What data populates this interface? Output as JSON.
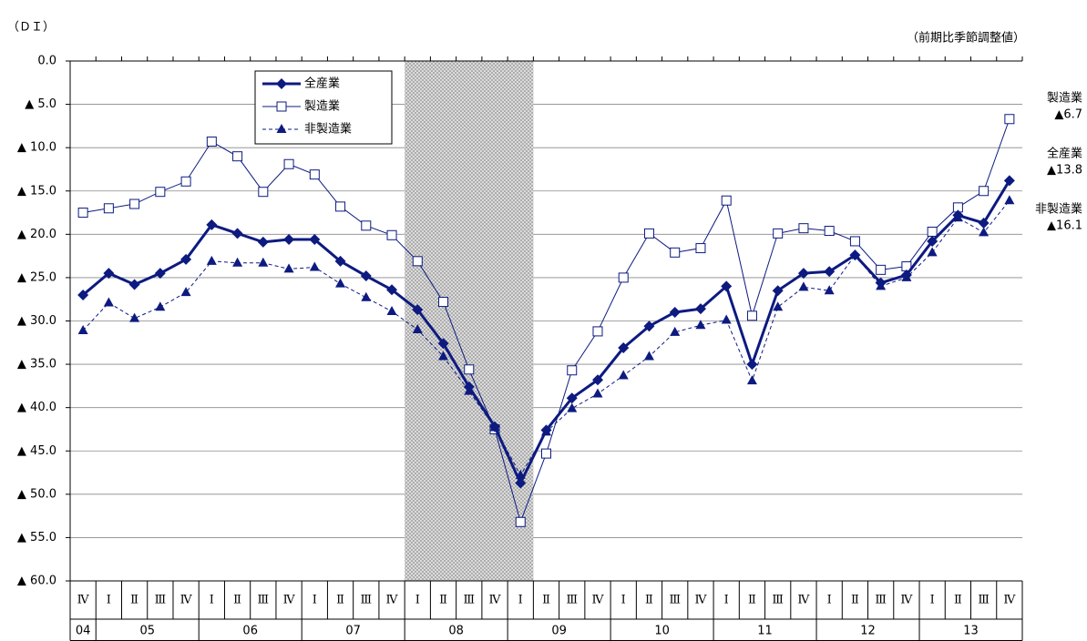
{
  "chart_data": {
    "type": "line",
    "unit_left": "（ＤＩ）",
    "unit_right": "（前期比季節調整値）",
    "categories": [
      "Ⅳ",
      "Ⅰ",
      "Ⅱ",
      "Ⅲ",
      "Ⅳ",
      "Ⅰ",
      "Ⅱ",
      "Ⅲ",
      "Ⅳ",
      "Ⅰ",
      "Ⅱ",
      "Ⅲ",
      "Ⅳ",
      "Ⅰ",
      "Ⅱ",
      "Ⅲ",
      "Ⅳ",
      "Ⅰ",
      "Ⅱ",
      "Ⅲ",
      "Ⅳ",
      "Ⅰ",
      "Ⅱ",
      "Ⅲ",
      "Ⅳ",
      "Ⅰ",
      "Ⅱ",
      "Ⅲ",
      "Ⅳ",
      "Ⅰ",
      "Ⅱ",
      "Ⅲ",
      "Ⅳ",
      "Ⅰ",
      "Ⅱ",
      "Ⅲ",
      "Ⅳ"
    ],
    "x_years": [
      "04",
      "05",
      null,
      null,
      null,
      "06",
      null,
      null,
      null,
      "07",
      null,
      null,
      null,
      "08",
      null,
      null,
      null,
      "09",
      null,
      null,
      null,
      "10",
      null,
      null,
      null,
      "11",
      null,
      null,
      null,
      "12",
      null,
      null,
      null,
      "13",
      null,
      null,
      null
    ],
    "shaded_quarters": [
      13,
      17
    ],
    "ylim": [
      -60,
      0
    ],
    "yticks": [
      {
        "value": 0,
        "label": "0.0"
      },
      {
        "value": -5,
        "label": "▲ 5.0"
      },
      {
        "value": -10,
        "label": "▲ 10.0"
      },
      {
        "value": -15,
        "label": "▲ 15.0"
      },
      {
        "value": -20,
        "label": "▲ 20.0"
      },
      {
        "value": -25,
        "label": "▲ 25.0"
      },
      {
        "value": -30,
        "label": "▲ 30.0"
      },
      {
        "value": -35,
        "label": "▲ 35.0"
      },
      {
        "value": -40,
        "label": "▲ 40.0"
      },
      {
        "value": -45,
        "label": "▲ 45.0"
      },
      {
        "value": -50,
        "label": "▲ 50.0"
      },
      {
        "value": -55,
        "label": "▲ 55.0"
      },
      {
        "value": -60,
        "label": "▲ 60.0"
      }
    ],
    "grid": true,
    "series": [
      {
        "name": "全産業",
        "color": "#0d1a80",
        "marker": "diamond",
        "dash": "solid",
        "line_width": 3,
        "values": [
          -27.0,
          -24.5,
          -25.8,
          -24.5,
          -22.9,
          -18.9,
          -19.9,
          -20.9,
          -20.6,
          -20.6,
          -23.1,
          -24.8,
          -26.4,
          -28.7,
          -32.6,
          -37.6,
          -42.2,
          -48.7,
          -42.6,
          -38.9,
          -36.8,
          -33.1,
          -30.6,
          -29.0,
          -28.6,
          -26.0,
          -35.0,
          -26.5,
          -24.5,
          -24.3,
          -22.4,
          -25.6,
          -24.7,
          -20.8,
          -17.8,
          -18.7,
          -13.8
        ]
      },
      {
        "name": "製造業",
        "color": "#0d1a80",
        "marker": "square",
        "dash": "solid",
        "line_width": 1,
        "values": [
          -17.5,
          -17.0,
          -16.5,
          -15.1,
          -13.9,
          -9.3,
          -11.0,
          -15.1,
          -11.9,
          -13.1,
          -16.8,
          -19.0,
          -20.1,
          -23.1,
          -27.8,
          -35.6,
          -42.5,
          -53.2,
          -45.3,
          -35.7,
          -31.2,
          -25.0,
          -19.9,
          -22.1,
          -21.6,
          -16.1,
          -29.4,
          -19.9,
          -19.3,
          -19.6,
          -20.8,
          -24.1,
          -23.7,
          -19.7,
          -16.9,
          -15.0,
          -6.7
        ]
      },
      {
        "name": "非製造業",
        "color": "#0d1a80",
        "marker": "triangle",
        "dash": "dashed",
        "line_width": 1,
        "values": [
          -31.1,
          -27.9,
          -29.7,
          -28.4,
          -26.7,
          -23.1,
          -23.3,
          -23.3,
          -24.0,
          -23.8,
          -25.7,
          -27.3,
          -28.9,
          -31.0,
          -34.1,
          -38.1,
          -42.3,
          -47.8,
          -42.8,
          -40.1,
          -38.4,
          -36.3,
          -34.1,
          -31.3,
          -30.5,
          -29.9,
          -36.9,
          -28.4,
          -26.1,
          -26.5,
          -22.4,
          -26.0,
          -25.0,
          -22.1,
          -18.1,
          -19.8,
          -16.1
        ]
      }
    ],
    "annotations": [
      {
        "text": "製造業",
        "label": "▲6.7"
      },
      {
        "text": "全産業",
        "label": "▲13.8"
      },
      {
        "text": "非製造業",
        "label": "▲16.1"
      }
    ]
  }
}
